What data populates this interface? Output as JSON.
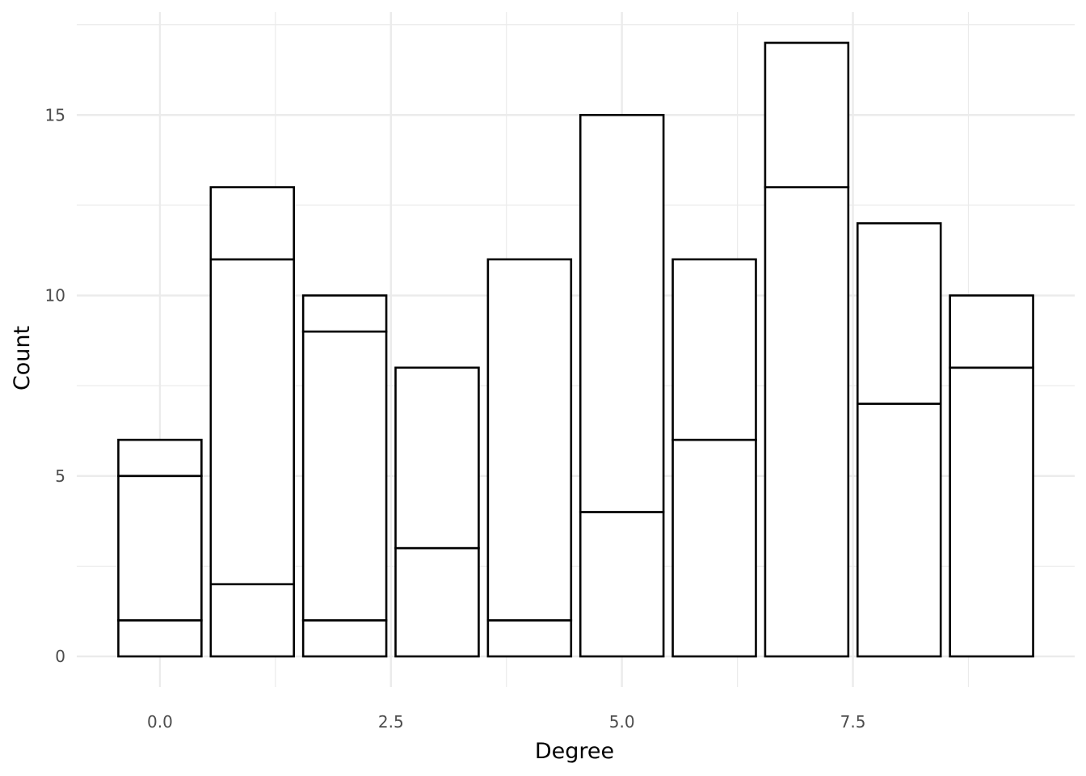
{
  "chart_data": {
    "type": "bar",
    "stacked": true,
    "title": "",
    "xlabel": "Degree",
    "ylabel": "Count",
    "x": [
      0,
      1,
      2,
      3,
      4,
      5,
      6,
      7,
      8,
      9
    ],
    "segments": [
      [
        1,
        4,
        1
      ],
      [
        2,
        9,
        2
      ],
      [
        1,
        8,
        1
      ],
      [
        3,
        5
      ],
      [
        1,
        10
      ],
      [
        4,
        11
      ],
      [
        6,
        5
      ],
      [
        13,
        4
      ],
      [
        7,
        5
      ],
      [
        8,
        2
      ]
    ],
    "totals": [
      6,
      13,
      10,
      8,
      11,
      15,
      11,
      17,
      12,
      10
    ],
    "xlim": [
      -0.9,
      9.9
    ],
    "ylim": [
      -0.85,
      17.85
    ],
    "x_ticks": [
      0,
      2.5,
      5,
      7.5
    ],
    "x_tick_labels": [
      "0.0",
      "2.5",
      "5.0",
      "7.5"
    ],
    "y_ticks": [
      0,
      5,
      10,
      15
    ],
    "y_tick_labels": [
      "0",
      "5",
      "10",
      "15"
    ],
    "bar_width": 0.9,
    "bar_fill": "#ffffff",
    "bar_stroke": "#000000",
    "grid": true,
    "grid_color": "#ebebeb",
    "legend": "none"
  }
}
